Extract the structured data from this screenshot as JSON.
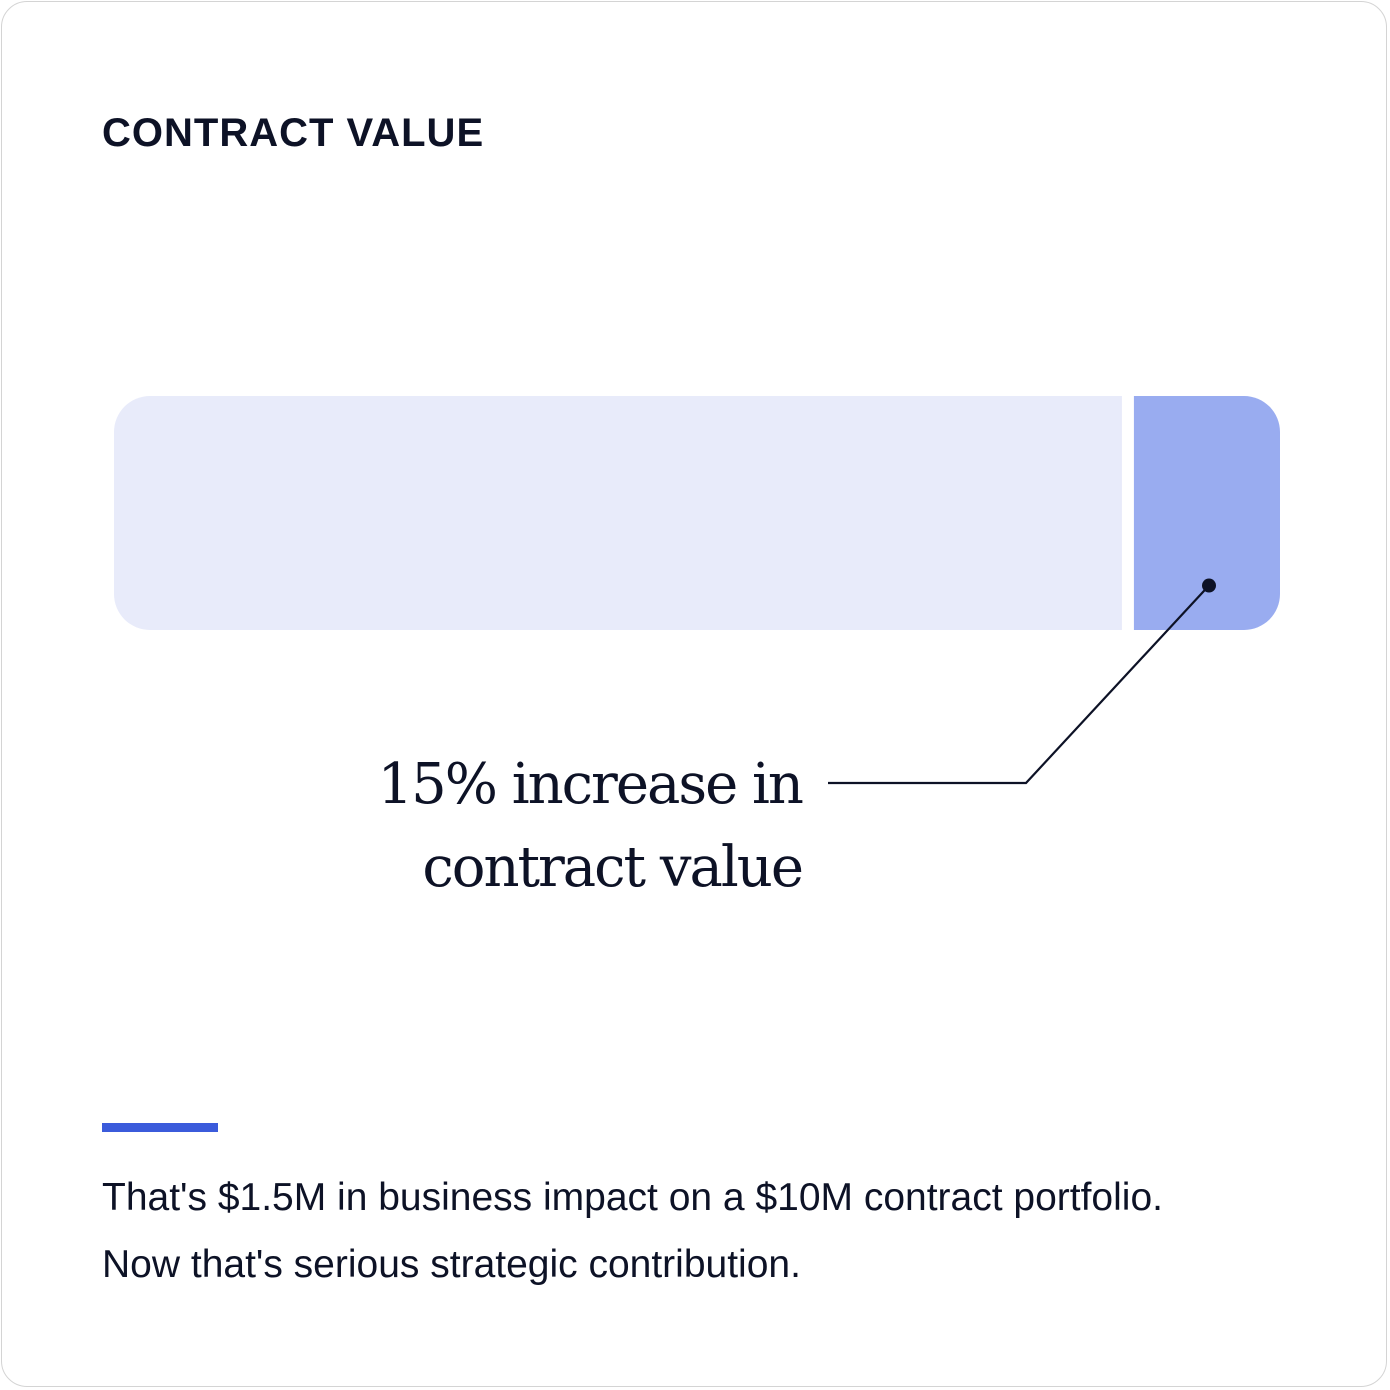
{
  "title": "CONTRACT VALUE",
  "chart_data": {
    "type": "bar",
    "orientation": "horizontal-stacked",
    "title": "CONTRACT VALUE",
    "series": [
      {
        "values": [
          100
        ]
      },
      {
        "values": [
          15
        ]
      }
    ],
    "annotation": {
      "lines": [
        "15% increase in",
        "contract value"
      ],
      "target": "increase-segment"
    },
    "colors": {
      "base": "#e8ebfa",
      "increase": "#99acf0",
      "text": "#0d1226"
    }
  },
  "caption": {
    "line1": "That's $1.5M in business impact on a $10M contract portfolio.",
    "line2": "Now that's serious strategic contribution."
  },
  "accent_color": "#3b5bdb"
}
